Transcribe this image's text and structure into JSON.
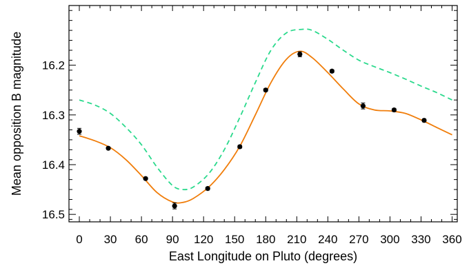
{
  "chart_data": {
    "type": "scatter",
    "title": "",
    "xlabel": "East Longitude on Pluto (degrees)",
    "ylabel": "Mean opposition B magnitude",
    "xlim": [
      -10,
      365
    ],
    "ylim": [
      16.08,
      16.515
    ],
    "y_inverted": true,
    "grid": false,
    "x_ticks": [
      0,
      30,
      60,
      90,
      120,
      150,
      180,
      210,
      240,
      270,
      300,
      330,
      360
    ],
    "x_tick_labels": [
      "0",
      "30",
      "60",
      "90",
      "120",
      "150",
      "180",
      "210",
      "240",
      "270",
      "300",
      "330",
      "360"
    ],
    "y_ticks": [
      16.2,
      16.3,
      16.4,
      16.5
    ],
    "y_tick_labels": [
      "16.2",
      "16.3",
      "16.4",
      "16.5"
    ],
    "series": [
      {
        "kind": "points",
        "color": "#000000",
        "x": [
          0,
          28,
          64,
          92,
          124,
          155,
          180,
          213,
          244,
          274,
          304,
          333
        ],
        "y": [
          16.333,
          16.367,
          16.428,
          16.483,
          16.448,
          16.364,
          16.25,
          16.178,
          16.212,
          16.282,
          16.29,
          16.311
        ],
        "yerr": [
          0.006,
          0.002,
          0.002,
          0.006,
          0.003,
          0.003,
          0.003,
          0.005,
          0.003,
          0.006,
          0.003,
          0.003
        ]
      },
      {
        "kind": "line",
        "style": "solid",
        "color": "#f07d0a",
        "x": [
          0,
          15,
          30,
          45,
          60,
          75,
          90,
          100,
          110,
          125,
          140,
          155,
          170,
          185,
          200,
          213,
          225,
          240,
          255,
          270,
          285,
          300,
          315,
          330,
          345,
          360
        ],
        "y": [
          16.342,
          16.352,
          16.366,
          16.39,
          16.422,
          16.456,
          16.475,
          16.476,
          16.468,
          16.445,
          16.41,
          16.363,
          16.3,
          16.235,
          16.188,
          16.172,
          16.185,
          16.215,
          16.248,
          16.278,
          16.29,
          16.292,
          16.297,
          16.31,
          16.325,
          16.34
        ]
      },
      {
        "kind": "line",
        "style": "dashed",
        "color": "#2ad98c",
        "x": [
          0,
          15,
          30,
          45,
          60,
          75,
          90,
          100,
          110,
          125,
          140,
          155,
          170,
          185,
          200,
          215,
          225,
          240,
          255,
          270,
          285,
          300,
          315,
          330,
          345,
          360
        ],
        "y": [
          16.27,
          16.28,
          16.297,
          16.325,
          16.36,
          16.405,
          16.442,
          16.45,
          16.445,
          16.418,
          16.37,
          16.305,
          16.235,
          16.17,
          16.135,
          16.128,
          16.13,
          16.148,
          16.17,
          16.19,
          16.203,
          16.215,
          16.228,
          16.242,
          16.255,
          16.27
        ]
      }
    ]
  }
}
